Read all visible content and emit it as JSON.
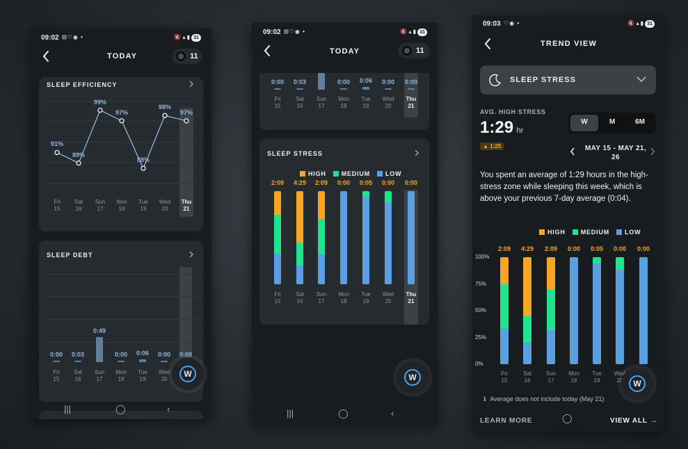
{
  "colors": {
    "high": "#f5a623",
    "medium": "#1ee48d",
    "low": "#5a9fe0",
    "line": "#8fb6dc"
  },
  "days": [
    {
      "d": "Fri",
      "n": "15"
    },
    {
      "d": "Sat",
      "n": "16"
    },
    {
      "d": "Sun",
      "n": "17"
    },
    {
      "d": "Mon",
      "n": "18"
    },
    {
      "d": "Tue",
      "n": "19"
    },
    {
      "d": "Wed",
      "n": "20"
    },
    {
      "d": "Thu",
      "n": "21"
    }
  ],
  "screen1": {
    "time": "09:02",
    "battery": "31",
    "title": "TODAY",
    "badge": "11",
    "efficiency": {
      "title": "SLEEP EFFICIENCY",
      "labels": [
        "91%",
        "89%",
        "99%",
        "97%",
        "88%",
        "98%",
        "97%"
      ],
      "values": [
        91,
        89,
        99,
        97,
        88,
        98,
        97
      ]
    },
    "debt": {
      "title": "SLEEP DEBT",
      "labels": [
        "0:00",
        "0:03",
        "0:49",
        "0:00",
        "0:06",
        "0:00",
        "0:00"
      ],
      "minutes": [
        0,
        3,
        49,
        0,
        6,
        0,
        0
      ]
    },
    "fab_label": "W"
  },
  "screen2": {
    "time": "09:02",
    "battery": "31",
    "title": "TODAY",
    "badge": "11",
    "debt_partial": {
      "labels": [
        "0:00",
        "0:03",
        "",
        "0:00",
        "0:06",
        "0:00",
        "0:00"
      ],
      "minutes": [
        0,
        3,
        49,
        0,
        6,
        0,
        0
      ]
    },
    "stress": {
      "title": "SLEEP STRESS",
      "legend": [
        "HIGH",
        "MEDIUM",
        "LOW"
      ],
      "totals": [
        "2:09",
        "4:29",
        "2:09",
        "0:00",
        "0:05",
        "0:00",
        "0:00"
      ]
    },
    "fab_label": "W"
  },
  "screen3": {
    "time": "09:03",
    "battery": "31",
    "title": "TREND VIEW",
    "dropdown_label": "SLEEP STRESS",
    "avg_label": "AVG. HIGH STRESS",
    "avg_value": "1:29",
    "avg_unit": "hr",
    "delta": "1:25",
    "tabs": [
      "W",
      "M",
      "6M"
    ],
    "active_tab": "W",
    "date_range": "MAY 15 - MAY 21,",
    "date_range_2": "26",
    "summary": "You spent an average of 1:29 hours in the high-stress zone while sleeping this week, which is above your previous 7-day average (0:04).",
    "legend": [
      "HIGH",
      "MEDIUM",
      "LOW"
    ],
    "totals": [
      "2:09",
      "4:29",
      "2:09",
      "0:00",
      "0:05",
      "0:00",
      "0:00"
    ],
    "y_ticks": [
      "100%",
      "75%",
      "50%",
      "25%",
      "0%"
    ],
    "note": "Average does not include today (May 21)",
    "learn_more": "LEARN MORE",
    "view_all": "VIEW ALL",
    "fab_label": "W"
  },
  "chart_data": [
    {
      "type": "line",
      "title": "SLEEP EFFICIENCY",
      "categories": [
        "Fri 15",
        "Sat 16",
        "Sun 17",
        "Mon 18",
        "Tue 19",
        "Wed 20",
        "Thu 21"
      ],
      "series": [
        {
          "values": [
            91,
            89,
            99,
            97,
            88,
            98,
            97
          ]
        }
      ],
      "ylim": [
        80,
        100
      ],
      "grid": true
    },
    {
      "type": "bar",
      "title": "SLEEP DEBT",
      "categories": [
        "Fri 15",
        "Sat 16",
        "Sun 17",
        "Mon 18",
        "Tue 19",
        "Wed 20",
        "Thu 21"
      ],
      "values": [
        0,
        3,
        49,
        0,
        6,
        0,
        0
      ],
      "grid": true
    },
    {
      "type": "bar",
      "title": "SLEEP STRESS",
      "stacked": true,
      "categories": [
        "Fri 15",
        "Sat 16",
        "Sun 17",
        "Mon 18",
        "Tue 19",
        "Wed 20",
        "Thu 21"
      ],
      "series": [
        {
          "name": "HIGH",
          "values": [
            25,
            55,
            30,
            0,
            0,
            0,
            0
          ]
        },
        {
          "name": "MEDIUM",
          "values": [
            42,
            25,
            38,
            0,
            6,
            12,
            0
          ]
        },
        {
          "name": "LOW",
          "values": [
            33,
            20,
            32,
            100,
            94,
            88,
            100
          ]
        }
      ],
      "ylim": [
        0,
        100
      ],
      "legend": "top-right"
    }
  ]
}
